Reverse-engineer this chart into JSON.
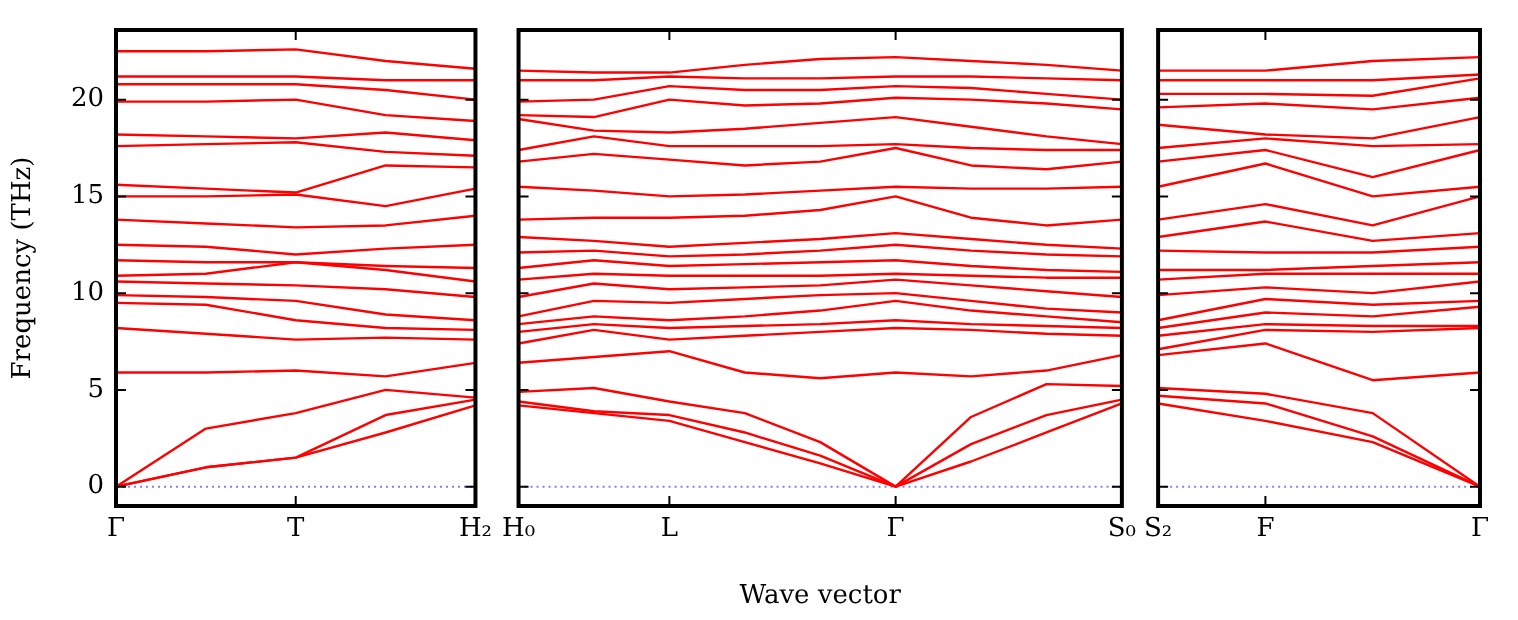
{
  "chart_data": [
    {
      "type": "line",
      "ylabel": "Frequency (THz)",
      "categories": [
        "Γ",
        null,
        "T",
        null,
        "H₂"
      ],
      "ylim": [
        -1,
        23.6
      ],
      "yticks": [
        0,
        5,
        10,
        15,
        20
      ],
      "marker": "none",
      "line_style": "solid",
      "ref_lines": [
        {
          "axis": "y",
          "value": 0,
          "color": "#7f7fff",
          "line_style": "dotted"
        }
      ],
      "series": [
        {
          "color": "#ff0000",
          "values": [
            0,
            1.0,
            1.5,
            2.8,
            4.2
          ]
        },
        {
          "color": "#ff0000",
          "values": [
            0,
            1.0,
            1.5,
            3.7,
            4.5
          ]
        },
        {
          "color": "#ff0000",
          "values": [
            0,
            3.0,
            3.8,
            5.0,
            4.6
          ]
        },
        {
          "color": "#ff0000",
          "values": [
            5.9,
            5.9,
            6.0,
            5.7,
            6.4
          ]
        },
        {
          "color": "#ff0000",
          "values": [
            8.2,
            7.9,
            7.6,
            7.7,
            7.6
          ]
        },
        {
          "color": "#ff0000",
          "values": [
            9.5,
            9.4,
            8.6,
            8.2,
            8.1
          ]
        },
        {
          "color": "#ff0000",
          "values": [
            9.9,
            9.8,
            9.6,
            8.9,
            8.6
          ]
        },
        {
          "color": "#ff0000",
          "values": [
            10.6,
            10.5,
            10.4,
            10.2,
            9.8
          ]
        },
        {
          "color": "#ff0000",
          "values": [
            10.9,
            11.0,
            11.6,
            11.2,
            10.6
          ]
        },
        {
          "color": "#ff0000",
          "values": [
            11.7,
            11.6,
            11.6,
            11.4,
            11.3
          ]
        },
        {
          "color": "#ff0000",
          "values": [
            12.5,
            12.4,
            12.0,
            12.3,
            12.5
          ]
        },
        {
          "color": "#ff0000",
          "values": [
            13.8,
            13.6,
            13.4,
            13.5,
            14.0
          ]
        },
        {
          "color": "#ff0000",
          "values": [
            15.0,
            15.0,
            15.1,
            14.5,
            15.4
          ]
        },
        {
          "color": "#ff0000",
          "values": [
            15.6,
            15.4,
            15.2,
            16.6,
            16.5
          ]
        },
        {
          "color": "#ff0000",
          "values": [
            17.6,
            17.7,
            17.8,
            17.3,
            17.1
          ]
        },
        {
          "color": "#ff0000",
          "values": [
            18.2,
            18.1,
            18.0,
            18.3,
            17.9
          ]
        },
        {
          "color": "#ff0000",
          "values": [
            19.9,
            19.9,
            20.0,
            19.2,
            18.9
          ]
        },
        {
          "color": "#ff0000",
          "values": [
            20.8,
            20.8,
            20.8,
            20.5,
            20.0
          ]
        },
        {
          "color": "#ff0000",
          "values": [
            21.2,
            21.2,
            21.2,
            21.0,
            21.0
          ]
        },
        {
          "color": "#ff0000",
          "values": [
            22.5,
            22.5,
            22.6,
            22.0,
            21.6
          ]
        }
      ]
    },
    {
      "type": "line",
      "xlabel": "Wave vector",
      "tick_labels": "x",
      "categories": [
        "H₀",
        null,
        "L",
        null,
        null,
        "Γ",
        null,
        null,
        "S₀"
      ],
      "ylim": [
        -1,
        23.6
      ],
      "yticks": [
        0,
        5,
        10,
        15,
        20
      ],
      "marker": "none",
      "line_style": "solid",
      "ref_lines": [
        {
          "axis": "y",
          "value": 0,
          "color": "#7f7fff",
          "line_style": "dotted"
        }
      ],
      "series": [
        {
          "color": "#ff0000",
          "values": [
            4.2,
            3.8,
            3.4,
            2.3,
            1.2,
            0,
            1.3,
            2.8,
            4.3
          ]
        },
        {
          "color": "#ff0000",
          "values": [
            4.4,
            3.9,
            3.7,
            2.8,
            1.6,
            0,
            2.2,
            3.7,
            4.5
          ]
        },
        {
          "color": "#ff0000",
          "values": [
            4.9,
            5.1,
            4.4,
            3.8,
            2.3,
            0,
            3.6,
            5.3,
            5.2
          ]
        },
        {
          "color": "#ff0000",
          "values": [
            6.4,
            6.7,
            7.0,
            5.9,
            5.6,
            5.9,
            5.7,
            6.0,
            6.8
          ]
        },
        {
          "color": "#ff0000",
          "values": [
            7.4,
            8.1,
            7.6,
            7.8,
            8.0,
            8.2,
            8.1,
            7.9,
            7.8
          ]
        },
        {
          "color": "#ff0000",
          "values": [
            8.0,
            8.4,
            8.2,
            8.3,
            8.4,
            8.6,
            8.4,
            8.3,
            8.2
          ]
        },
        {
          "color": "#ff0000",
          "values": [
            8.4,
            8.8,
            8.6,
            8.8,
            9.1,
            9.6,
            9.1,
            8.8,
            8.5
          ]
        },
        {
          "color": "#ff0000",
          "values": [
            8.8,
            9.6,
            9.5,
            9.7,
            9.9,
            10.0,
            9.6,
            9.2,
            9.0
          ]
        },
        {
          "color": "#ff0000",
          "values": [
            9.8,
            10.5,
            10.2,
            10.3,
            10.4,
            10.7,
            10.4,
            10.1,
            9.8
          ]
        },
        {
          "color": "#ff0000",
          "values": [
            10.7,
            11.0,
            10.9,
            10.9,
            10.9,
            11.0,
            10.9,
            10.8,
            10.8
          ]
        },
        {
          "color": "#ff0000",
          "values": [
            11.3,
            11.7,
            11.4,
            11.5,
            11.6,
            11.7,
            11.4,
            11.2,
            11.1
          ]
        },
        {
          "color": "#ff0000",
          "values": [
            12.1,
            12.2,
            11.9,
            12.0,
            12.2,
            12.5,
            12.2,
            12.0,
            11.9
          ]
        },
        {
          "color": "#ff0000",
          "values": [
            12.9,
            12.7,
            12.4,
            12.6,
            12.8,
            13.1,
            12.8,
            12.5,
            12.3
          ]
        },
        {
          "color": "#ff0000",
          "values": [
            13.8,
            13.9,
            13.9,
            14.0,
            14.3,
            15.0,
            13.9,
            13.5,
            13.8
          ]
        },
        {
          "color": "#ff0000",
          "values": [
            15.5,
            15.3,
            15.0,
            15.1,
            15.3,
            15.5,
            15.4,
            15.4,
            15.5
          ]
        },
        {
          "color": "#ff0000",
          "values": [
            16.8,
            17.2,
            16.9,
            16.6,
            16.8,
            17.5,
            16.6,
            16.4,
            16.8
          ]
        },
        {
          "color": "#ff0000",
          "values": [
            17.4,
            18.1,
            17.6,
            17.6,
            17.6,
            17.7,
            17.5,
            17.4,
            17.4
          ]
        },
        {
          "color": "#ff0000",
          "values": [
            19.0,
            18.4,
            18.3,
            18.5,
            18.8,
            19.1,
            18.6,
            18.1,
            17.7
          ]
        },
        {
          "color": "#ff0000",
          "values": [
            19.2,
            19.1,
            20.0,
            19.7,
            19.8,
            20.1,
            20.0,
            19.8,
            19.5
          ]
        },
        {
          "color": "#ff0000",
          "values": [
            19.9,
            20.0,
            20.7,
            20.5,
            20.5,
            20.7,
            20.6,
            20.3,
            20.0
          ]
        },
        {
          "color": "#ff0000",
          "values": [
            21.0,
            21.0,
            21.2,
            21.1,
            21.1,
            21.2,
            21.2,
            21.1,
            21.0
          ]
        },
        {
          "color": "#ff0000",
          "values": [
            21.5,
            21.4,
            21.4,
            21.8,
            22.1,
            22.2,
            22.0,
            21.8,
            21.5
          ]
        }
      ]
    },
    {
      "type": "line",
      "tick_labels": "x",
      "categories": [
        "S₂",
        "F",
        null,
        "Γ"
      ],
      "ylim": [
        -1,
        23.6
      ],
      "yticks": [
        0,
        5,
        10,
        15,
        20
      ],
      "marker": "none",
      "line_style": "solid",
      "ref_lines": [
        {
          "axis": "y",
          "value": 0,
          "color": "#7f7fff",
          "line_style": "dotted"
        }
      ],
      "series": [
        {
          "color": "#ff0000",
          "values": [
            4.3,
            3.4,
            2.3,
            0
          ]
        },
        {
          "color": "#ff0000",
          "values": [
            4.7,
            4.3,
            2.6,
            0
          ]
        },
        {
          "color": "#ff0000",
          "values": [
            5.1,
            4.8,
            3.8,
            0
          ]
        },
        {
          "color": "#ff0000",
          "values": [
            6.8,
            7.4,
            5.5,
            5.9
          ]
        },
        {
          "color": "#ff0000",
          "values": [
            7.1,
            8.1,
            8.0,
            8.2
          ]
        },
        {
          "color": "#ff0000",
          "values": [
            7.8,
            8.4,
            8.3,
            8.3
          ]
        },
        {
          "color": "#ff0000",
          "values": [
            8.2,
            9.0,
            8.8,
            9.3
          ]
        },
        {
          "color": "#ff0000",
          "values": [
            8.6,
            9.7,
            9.4,
            9.6
          ]
        },
        {
          "color": "#ff0000",
          "values": [
            9.9,
            10.3,
            10.0,
            10.6
          ]
        },
        {
          "color": "#ff0000",
          "values": [
            10.7,
            11.0,
            11.0,
            11.0
          ]
        },
        {
          "color": "#ff0000",
          "values": [
            11.2,
            11.2,
            11.4,
            11.6
          ]
        },
        {
          "color": "#ff0000",
          "values": [
            12.2,
            12.1,
            12.1,
            12.4
          ]
        },
        {
          "color": "#ff0000",
          "values": [
            12.9,
            13.7,
            12.7,
            13.1
          ]
        },
        {
          "color": "#ff0000",
          "values": [
            13.8,
            14.6,
            13.5,
            15.0
          ]
        },
        {
          "color": "#ff0000",
          "values": [
            15.5,
            16.7,
            15.0,
            15.5
          ]
        },
        {
          "color": "#ff0000",
          "values": [
            16.8,
            17.4,
            16.0,
            17.4
          ]
        },
        {
          "color": "#ff0000",
          "values": [
            17.5,
            18.0,
            17.6,
            17.7
          ]
        },
        {
          "color": "#ff0000",
          "values": [
            18.7,
            18.2,
            18.0,
            19.1
          ]
        },
        {
          "color": "#ff0000",
          "values": [
            19.6,
            19.8,
            19.5,
            20.1
          ]
        },
        {
          "color": "#ff0000",
          "values": [
            20.3,
            20.3,
            20.2,
            21.1
          ]
        },
        {
          "color": "#ff0000",
          "values": [
            21.0,
            21.0,
            21.0,
            21.3
          ]
        },
        {
          "color": "#ff0000",
          "values": [
            21.5,
            21.5,
            22.0,
            22.2
          ]
        }
      ]
    }
  ]
}
